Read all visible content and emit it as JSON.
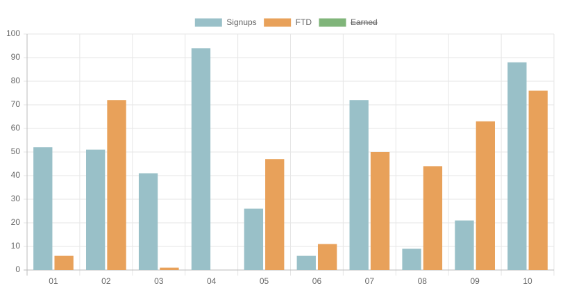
{
  "chart_data": {
    "type": "bar",
    "categories": [
      "01",
      "02",
      "03",
      "04",
      "05",
      "06",
      "07",
      "08",
      "09",
      "10"
    ],
    "series": [
      {
        "name": "Signups",
        "color": "#99c0c8",
        "values": [
          52,
          51,
          41,
          94,
          26,
          6,
          72,
          9,
          21,
          88
        ]
      },
      {
        "name": "FTD",
        "color": "#e8a15a",
        "values": [
          6,
          72,
          1,
          0,
          47,
          11,
          50,
          44,
          63,
          76
        ]
      },
      {
        "name": "Earned",
        "color": "#80b57a",
        "hidden": true,
        "values": [
          null,
          null,
          null,
          null,
          null,
          null,
          null,
          null,
          null,
          null
        ]
      }
    ],
    "ylim": [
      0,
      100
    ],
    "yticks": [
      0,
      10,
      20,
      30,
      40,
      50,
      60,
      70,
      80,
      90,
      100
    ],
    "grid": true,
    "legend": "top"
  }
}
